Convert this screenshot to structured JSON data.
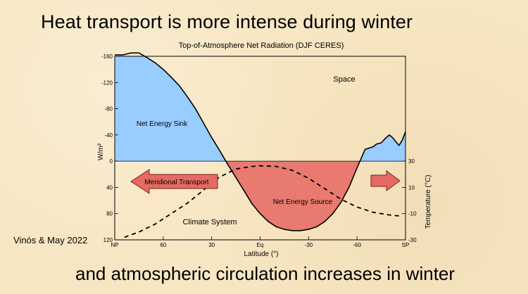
{
  "slide": {
    "title": "Heat transport is more intense during winter",
    "footer": "and atmospheric circulation increases in winter",
    "credit": "Vinós & May 2022"
  },
  "colors": {
    "background": "#f7e6c2",
    "sink_fill": "#99ccff",
    "source_fill": "#e87a70",
    "arrow_fill": "#e46a62",
    "line": "#000000"
  },
  "chart_data": {
    "type": "area",
    "title": "Top-of-Atmosphere Net Radiation (DJF CERES)",
    "xlabel": "Latitude (°)",
    "ylabel": "W/m²",
    "y2label": "Temperature (°C)",
    "x_ticks": [
      "NP",
      "60",
      "30",
      "Eq",
      "-30",
      "-60",
      "SP"
    ],
    "x_tick_values": [
      90,
      60,
      30,
      0,
      -30,
      -60,
      -90
    ],
    "xlim": [
      90,
      -90
    ],
    "y_ticks": [
      -160,
      -120,
      -80,
      -40,
      0,
      40,
      80,
      120
    ],
    "y_tick_labels": [
      "-160",
      "-120",
      "-80",
      "-40",
      "0",
      "40",
      "80",
      "120"
    ],
    "ylim": [
      -160,
      120
    ],
    "y_inverted": true,
    "y2_ticks": [
      30,
      10,
      -10,
      -30
    ],
    "y2_tick_labels": [
      "30",
      "10",
      "-10",
      "-30"
    ],
    "y2lim": [
      -30,
      30
    ],
    "series": [
      {
        "kind": "net_radiation",
        "x": [
          90,
          85,
          80,
          75,
          70,
          65,
          60,
          55,
          50,
          45,
          40,
          35,
          30,
          25,
          20,
          15,
          10,
          5,
          0,
          -5,
          -10,
          -15,
          -20,
          -25,
          -30,
          -35,
          -40,
          -45,
          -50,
          -55,
          -60,
          -65,
          -70,
          -72,
          -75,
          -78,
          -80,
          -82,
          -84,
          -86,
          -88,
          -90
        ],
        "y": [
          -162,
          -162,
          -165,
          -165,
          -158,
          -150,
          -140,
          -128,
          -115,
          -98,
          -80,
          -58,
          -36,
          -16,
          5,
          25,
          45,
          65,
          80,
          92,
          100,
          104,
          106,
          106,
          104,
          100,
          92,
          80,
          63,
          40,
          10,
          -18,
          -22,
          -26,
          -28,
          -36,
          -40,
          -36,
          -30,
          -24,
          -32,
          -45
        ]
      },
      {
        "kind": "temperature",
        "x": [
          84,
          75,
          65,
          55,
          45,
          35,
          25,
          15,
          5,
          0,
          -10,
          -20,
          -30,
          -40,
          -50,
          -60,
          -70,
          -80,
          -88
        ],
        "y": [
          -28,
          -24,
          -18,
          -10,
          -2,
          8,
          18,
          24,
          26,
          26.5,
          26,
          23,
          17,
          9,
          1,
          -5,
          -9,
          -11,
          -12
        ]
      }
    ],
    "annotations": {
      "space": "Space",
      "sink": "Net Energy Sink",
      "source": "Net Energy Source",
      "climate": "Climate System",
      "transport": "Meridional Transport"
    }
  }
}
